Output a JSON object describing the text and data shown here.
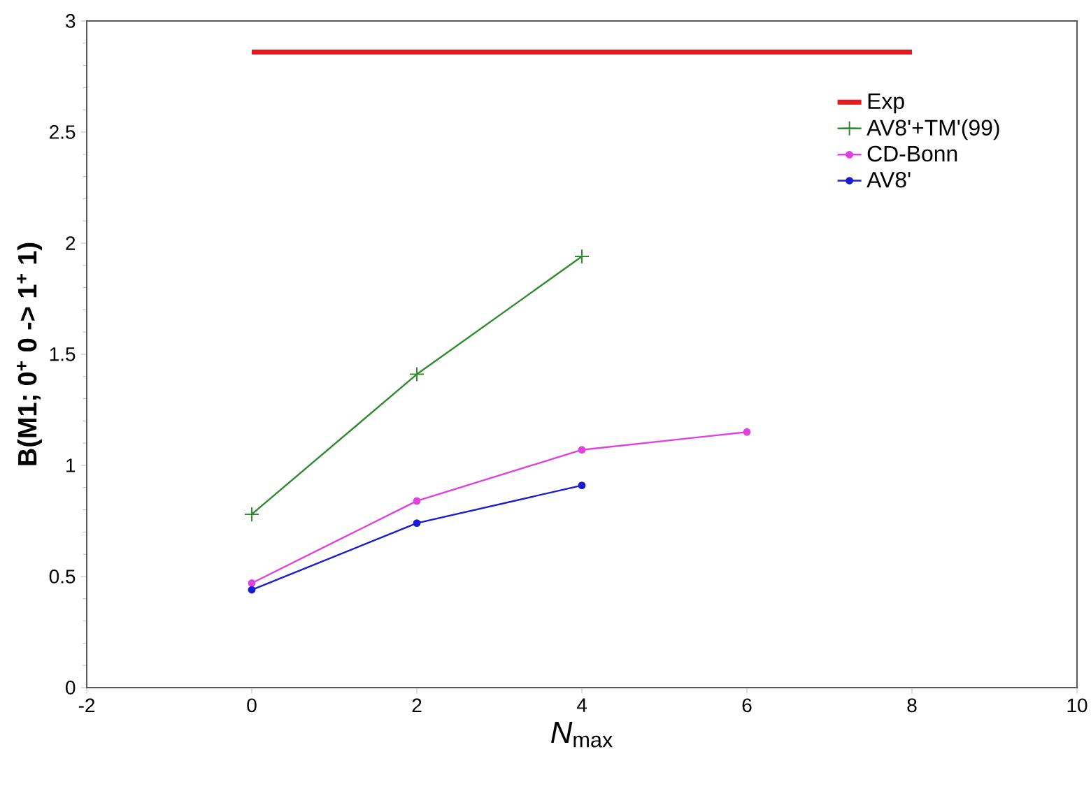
{
  "chart_data": {
    "type": "line",
    "xlabel": "*N*$_{max}$",
    "ylabel": "B(M1; 0$^{+}$ 0 -> 1$^{+}$ 1)",
    "xlim": [
      -2,
      10
    ],
    "xticks": [
      -2,
      0,
      2,
      4,
      6,
      8,
      10
    ],
    "ylim": [
      0,
      3
    ],
    "yticks": [
      0,
      0.5,
      1,
      1.5,
      2,
      2.5,
      3
    ],
    "legend": "top right",
    "grid": false,
    "series": [
      {
        "name": "Exp",
        "color": "#e8191c",
        "x": [
          0,
          8
        ],
        "values": [
          2.86,
          2.86
        ],
        "marker": "none"
      },
      {
        "name": "AV8'+TM'(99)",
        "color": "#2e8b2e",
        "x": [
          0,
          2,
          4
        ],
        "values": [
          0.78,
          1.41,
          1.94
        ],
        "marker": "cross"
      },
      {
        "name": "CD-Bonn",
        "color": "#e040e0",
        "x": [
          0,
          2,
          4,
          6
        ],
        "values": [
          0.47,
          0.84,
          1.07,
          1.15
        ],
        "marker": "circle"
      },
      {
        "name": "AV8'",
        "color": "#1a1ad0",
        "x": [
          0,
          2,
          4
        ],
        "values": [
          0.44,
          0.74,
          0.91
        ],
        "marker": "circle"
      }
    ]
  }
}
